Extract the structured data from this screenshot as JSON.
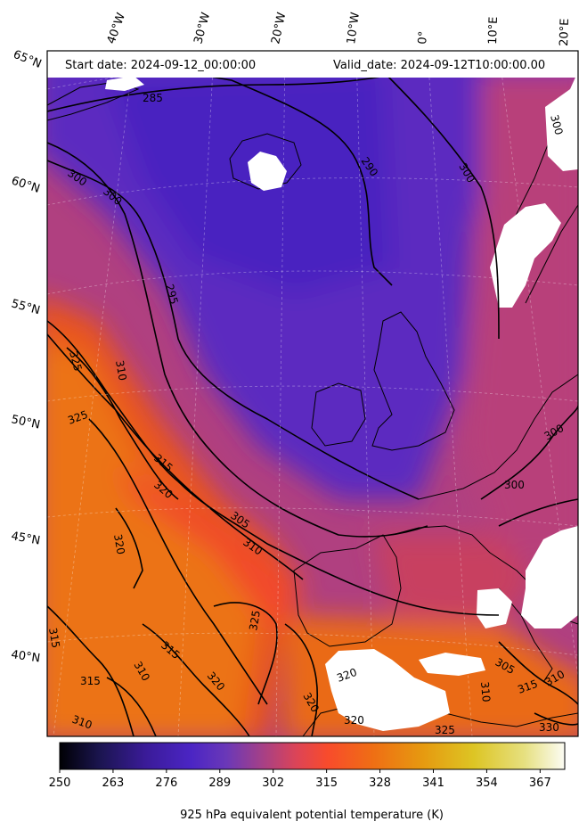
{
  "header": {
    "start_date": "Start date: 2024-09-12_00:00:00",
    "valid_date": "Valid_date: 2024-09-12T10:00:00.00"
  },
  "longitude_labels": [
    "40°W",
    "30°W",
    "20°W",
    "10°W",
    "0°",
    "10°E",
    "20°E"
  ],
  "latitude_labels": [
    "65°N",
    "60°N",
    "55°N",
    "50°N",
    "45°N",
    "40°N"
  ],
  "contour_labels": [
    "285",
    "290",
    "300",
    "300",
    "300",
    "295",
    "325",
    "310",
    "325",
    "315",
    "320",
    "305",
    "310",
    "320",
    "325",
    "315",
    "320",
    "310",
    "315",
    "315",
    "310",
    "320",
    "320",
    "320",
    "325",
    "330",
    "310",
    "315",
    "305",
    "310",
    "300",
    "300",
    "300"
  ],
  "colorbar": {
    "ticks": [
      "250",
      "263",
      "276",
      "289",
      "302",
      "315",
      "328",
      "341",
      "354",
      "367"
    ],
    "label": "925 hPa equivalent potential temperature (K)",
    "min": 250,
    "max": 373,
    "colors": [
      "#000004",
      "#1b1550",
      "#3a1b98",
      "#4b25c4",
      "#6a38b8",
      "#a44088",
      "#dd4456",
      "#f84b2c",
      "#ef6e14",
      "#e69a10",
      "#ddc524",
      "#e6e080",
      "#fcfcf4"
    ]
  }
}
